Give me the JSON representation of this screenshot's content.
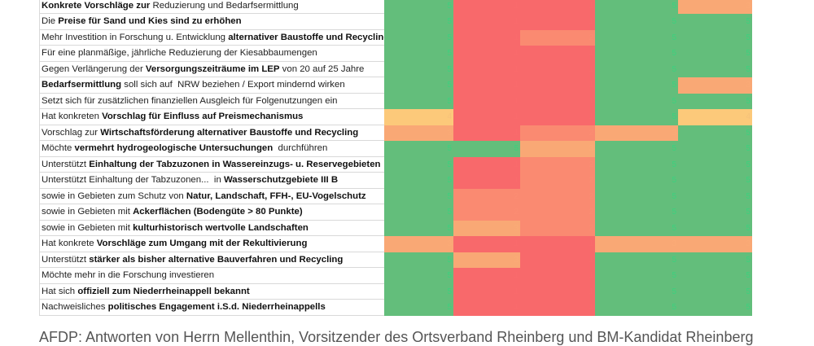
{
  "colors": {
    "1": "#f8696b",
    "2": "#fa8a71",
    "3": "#f9a875",
    "4": "#fcc97a",
    "5": "#63be7b"
  },
  "text_colors": {
    "1": "#f96b6c",
    "2": "#fb8d73",
    "3": "#faab77",
    "4": "#f5c27a",
    "5": "#3dd17e"
  },
  "rows": [
    {
      "label": [
        {
          "t": "Konkrete Vorschläge zur",
          "b": true
        },
        {
          "t": " Reduzierung und Bedarfsermittlung",
          "b": false
        }
      ],
      "scores": [
        5,
        1,
        1,
        5,
        3
      ]
    },
    {
      "label": [
        {
          "t": "Die ",
          "b": false
        },
        {
          "t": "Preise für Sand und Kies sind zu erhöhen",
          "b": true
        }
      ],
      "scores": [
        5,
        1,
        1,
        5,
        5
      ]
    },
    {
      "label": [
        {
          "t": "Mehr Investition in Forschung u. Entwicklung ",
          "b": false
        },
        {
          "t": "alternativer Baustoffe und Recycling",
          "b": true
        }
      ],
      "scores": [
        5,
        1,
        2,
        5,
        5
      ]
    },
    {
      "label": [
        {
          "t": "Für eine planmäßige, jährliche Reduzierung der Kiesabbaumengen",
          "b": false
        }
      ],
      "scores": [
        5,
        1,
        1,
        5,
        5
      ]
    },
    {
      "label": [
        {
          "t": "Gegen Verlängerung der ",
          "b": false
        },
        {
          "t": "Versorgungszeiträume im LEP",
          "b": true
        },
        {
          "t": " von 20 auf 25 Jahre",
          "b": false
        }
      ],
      "scores": [
        5,
        1,
        1,
        5,
        5
      ]
    },
    {
      "label": [
        {
          "t": "Bedarfsermittlung",
          "b": true
        },
        {
          "t": " soll sich auf  NRW beziehen / Export mindernd wirken",
          "b": false
        }
      ],
      "scores": [
        5,
        1,
        1,
        5,
        3
      ]
    },
    {
      "label": [
        {
          "t": "Setzt sich für zusätzlichen finanziellen Ausgleich für Folgenutzungen ein",
          "b": false
        }
      ],
      "scores": [
        5,
        1,
        1,
        5,
        5
      ]
    },
    {
      "label": [
        {
          "t": "Hat konkreten ",
          "b": false
        },
        {
          "t": "Vorschlag für Einfluss auf Preismechanismus",
          "b": true
        }
      ],
      "scores": [
        4,
        1,
        1,
        5,
        4
      ]
    },
    {
      "label": [
        {
          "t": "Vorschlag zur ",
          "b": false
        },
        {
          "t": "Wirtschaftsförderung alternativer Baustoffe und Recycling",
          "b": true
        }
      ],
      "scores": [
        3,
        1,
        2,
        3,
        5
      ]
    },
    {
      "label": [
        {
          "t": "Möchte ",
          "b": false
        },
        {
          "t": "vermehrt hydrogeologische Untersuchungen",
          "b": true
        },
        {
          "t": "  durchführen",
          "b": false
        }
      ],
      "scores": [
        5,
        5,
        3,
        5,
        5
      ]
    },
    {
      "label": [
        {
          "t": "Unterstützt ",
          "b": false
        },
        {
          "t": "Einhaltung der Tabzuzonen in Wassereinzugs- u. Reservegebieten",
          "b": true
        }
      ],
      "scores": [
        5,
        1,
        2,
        5,
        5
      ]
    },
    {
      "label": [
        {
          "t": "Unterstützt Einhaltung der Tabzuzonen...  in ",
          "b": false
        },
        {
          "t": "Wasserschutzgebiete III B",
          "b": true
        }
      ],
      "scores": [
        5,
        1,
        2,
        5,
        5
      ]
    },
    {
      "label": [
        {
          "t": "sowie in Gebieten zum Schutz von ",
          "b": false
        },
        {
          "t": "Natur, Landschaft, FFH-, EU-Vogelschutz",
          "b": true
        }
      ],
      "scores": [
        5,
        2,
        2,
        5,
        5
      ]
    },
    {
      "label": [
        {
          "t": "sowie in Gebieten mit ",
          "b": false
        },
        {
          "t": "Ackerflächen (Bodengüte > 80 Punkte)",
          "b": true
        }
      ],
      "scores": [
        5,
        2,
        2,
        5,
        5
      ]
    },
    {
      "label": [
        {
          "t": "sowie in Gebieten mit ",
          "b": false
        },
        {
          "t": "kulturhistorisch wertvolle Landschaften",
          "b": true
        }
      ],
      "scores": [
        5,
        3,
        2,
        5,
        5
      ]
    },
    {
      "label": [
        {
          "t": "Hat konkrete ",
          "b": false
        },
        {
          "t": "Vorschläge zum Umgang mit der Rekultivierung",
          "b": true
        }
      ],
      "scores": [
        3,
        1,
        1,
        3,
        3
      ]
    },
    {
      "label": [
        {
          "t": "Unterstützt ",
          "b": false
        },
        {
          "t": "stärker als bisher alternative Bauverfahren und Recycling",
          "b": true
        }
      ],
      "scores": [
        5,
        3,
        1,
        5,
        5
      ]
    },
    {
      "label": [
        {
          "t": "Möchte mehr in die Forschung investieren",
          "b": false
        }
      ],
      "scores": [
        5,
        1,
        1,
        5,
        5
      ]
    },
    {
      "label": [
        {
          "t": "Hat sich ",
          "b": false
        },
        {
          "t": "offiziell zum Niederrheinappell bekannt",
          "b": true
        }
      ],
      "scores": [
        5,
        1,
        1,
        5,
        5
      ]
    },
    {
      "label": [
        {
          "t": "Nachweisliches ",
          "b": false
        },
        {
          "t": "politisches Engagement i.S.d. Niederrheinappells",
          "b": true
        }
      ],
      "scores": [
        5,
        1,
        1,
        5,
        5
      ]
    }
  ],
  "caption": "AFDP: Antworten von Herrn Mellenthin, Vorsitzender des Ortsverband Rheinberg und BM-Kandidat Rheinberg"
}
